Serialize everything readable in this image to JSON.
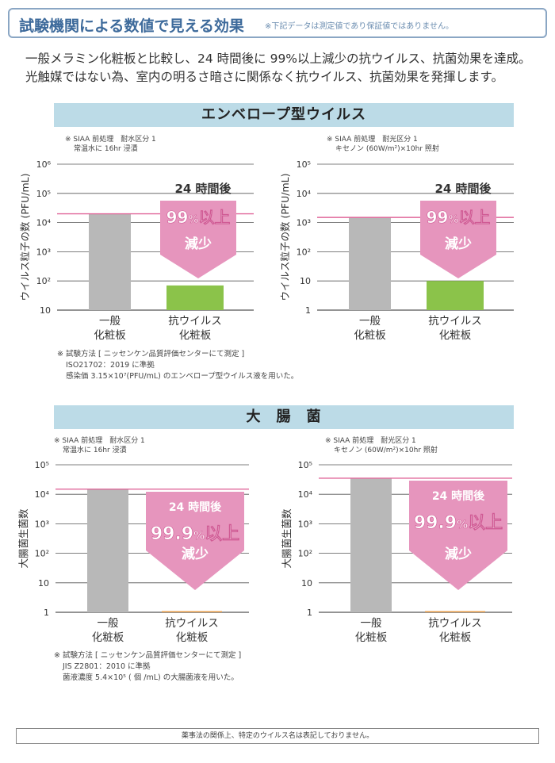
{
  "header": {
    "title": "試験機関による数値で見える効果",
    "note": "※下記データは測定値であり保証値ではありません。"
  },
  "intro": {
    "line1": "一般メラミン化粧板と比較し、24 時間後に 99%以上減少の抗ウイルス、抗菌効果を達成。",
    "line2": "光触媒ではない為、室内の明るさ暗さに関係なく抗ウイルス、抗菌効果を発揮します。"
  },
  "sections": {
    "virus": {
      "title": "エンベロープ型ウイルス",
      "left_cond": [
        "※ SIAA 前処理　耐水区分 1",
        "常温水に 16hr 浸漬"
      ],
      "right_cond": [
        "※ SIAA 前処理　耐光区分 1",
        "キセノン (60W/m²)×10hr 照射"
      ],
      "method": [
        "※ 試験方法 [ ニッセンケン品質評価センターにて測定 ]",
        "ISO21702：2019 に準拠",
        "感染価 3.15×10⁷(PFU/mL) のエンベロープ型ウイルス液を用いた。"
      ]
    },
    "ecoli": {
      "title": "大　腸　菌",
      "left_cond": [
        "※ SIAA 前処理　耐水区分 1",
        "常温水に 16hr 浸漬"
      ],
      "right_cond": [
        "※ SIAA 前処理　耐光区分 1",
        "キセノン (60W/m²)×10hr 照射"
      ],
      "method": [
        "※ 試験方法 [ ニッセンケン品質評価センターにて測定 ]",
        "JIS Z2801：2010 に準拠",
        "菌液濃度 5.4×10⁵ ( 個 /mL) の大腸菌液を用いた。"
      ]
    }
  },
  "footer": "薬事法の関係上、特定のウイルス名は表記しておりません。",
  "chart_data": [
    {
      "type": "bar",
      "scale": "log",
      "ylabel": "ウイルス粒子の数 (PFU/mL)",
      "yticks": [
        "10⁶",
        "10⁵",
        "10⁴",
        "10³",
        "10²",
        "10"
      ],
      "ylim": [
        10,
        1000000
      ],
      "categories": [
        [
          "一般",
          "化粧板"
        ],
        [
          "抗ウイルス",
          "化粧板"
        ]
      ],
      "values": [
        20000,
        70
      ],
      "colors": [
        "#b8b8b8",
        "#8bc34a"
      ],
      "annotation": {
        "time": "24 時間後",
        "main": "99",
        "unit": "%",
        "rest": "以上",
        "sub": "減少"
      }
    },
    {
      "type": "bar",
      "scale": "log",
      "ylabel": "ウイルス粒子の数 (PFU/mL)",
      "yticks": [
        "10⁵",
        "10⁴",
        "10³",
        "10²",
        "10",
        "1"
      ],
      "ylim": [
        1,
        100000
      ],
      "categories": [
        [
          "一般",
          "化粧板"
        ],
        [
          "抗ウイルス",
          "化粧板"
        ]
      ],
      "values": [
        1500,
        10
      ],
      "colors": [
        "#b8b8b8",
        "#8bc34a"
      ],
      "annotation": {
        "time": "24 時間後",
        "main": "99",
        "unit": "%",
        "rest": "以上",
        "sub": "減少"
      }
    },
    {
      "type": "bar",
      "scale": "log",
      "ylabel": "大腸菌生菌数",
      "yticks": [
        "10⁵",
        "10⁴",
        "10³",
        "10²",
        "10",
        "1"
      ],
      "ylim": [
        1,
        100000
      ],
      "categories": [
        [
          "一般",
          "化粧板"
        ],
        [
          "抗ウイルス",
          "化粧板"
        ]
      ],
      "values": [
        15000,
        1.1
      ],
      "colors": [
        "#b8b8b8",
        "#e8a050"
      ],
      "annotation": {
        "time": "24 時間後",
        "main": "99.9",
        "unit": "%",
        "rest": "以上",
        "sub": "減少"
      }
    },
    {
      "type": "bar",
      "scale": "log",
      "ylabel": "大腸菌生菌数",
      "yticks": [
        "10⁵",
        "10⁴",
        "10³",
        "10²",
        "10",
        "1"
      ],
      "ylim": [
        1,
        100000
      ],
      "categories": [
        [
          "一般",
          "化粧板"
        ],
        [
          "抗ウイルス",
          "化粧板"
        ]
      ],
      "values": [
        35000,
        1.1
      ],
      "colors": [
        "#b8b8b8",
        "#e8a050"
      ],
      "annotation": {
        "time": "24 時間後",
        "main": "99.9",
        "unit": "%",
        "rest": "以上",
        "sub": "減少"
      }
    }
  ]
}
